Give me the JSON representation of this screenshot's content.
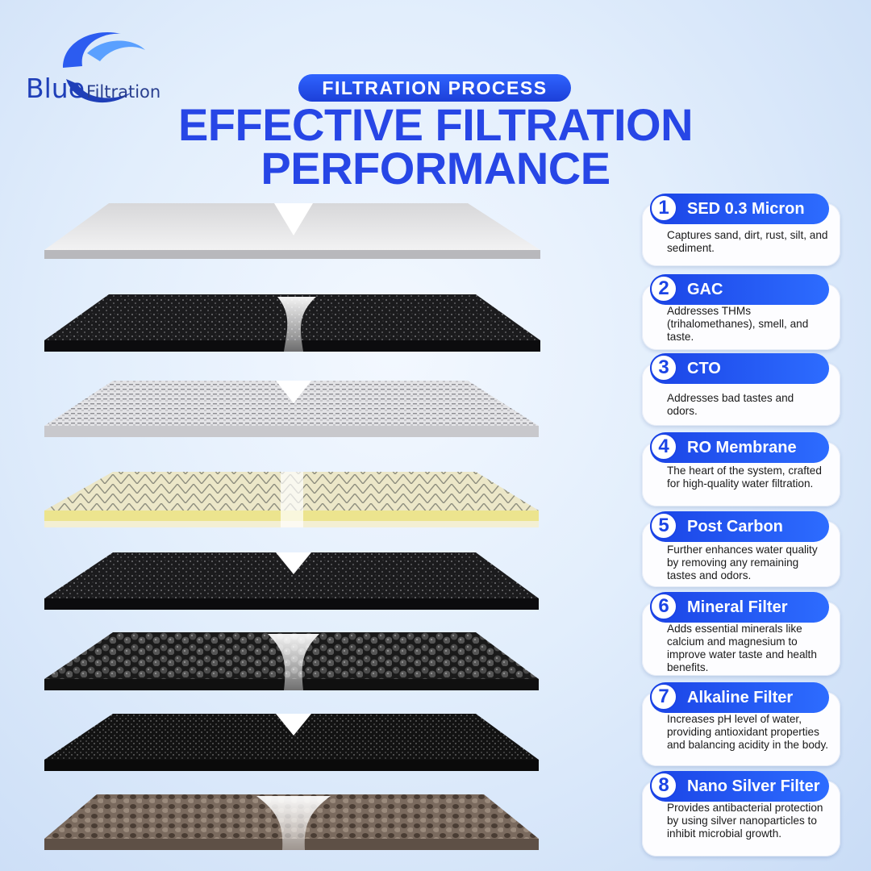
{
  "brand": {
    "logo_blue": "Blue",
    "logo_filtration": "Filtration"
  },
  "header": {
    "eyebrow": "FILTRATION PROCESS",
    "headline_line1": "EFFECTIVE FILTRATION",
    "headline_line2": "PERFORMANCE"
  },
  "colors": {
    "accent": "#2746e6",
    "tag": "#1b44e6",
    "background": "#dceafb"
  },
  "stages": [
    {
      "number": "1",
      "name": "SED 0.3 Micron",
      "description": "Captures sand, dirt, rust, silt, and sediment."
    },
    {
      "number": "2",
      "name": "GAC",
      "description": "Addresses THMs (trihalomethanes), smell, and taste."
    },
    {
      "number": "3",
      "name": "CTO",
      "description": "Addresses bad tastes and odors."
    },
    {
      "number": "4",
      "name": "RO Membrane",
      "description": "The heart of the system, crafted for high-quality water filtration."
    },
    {
      "number": "5",
      "name": "Post Carbon",
      "description": "Further enhances water quality by removing any remaining tastes and odors."
    },
    {
      "number": "6",
      "name": "Mineral Filter",
      "description": "Adds essential minerals like calcium and magnesium to improve water taste and health benefits."
    },
    {
      "number": "7",
      "name": "Alkaline Filter",
      "description": "Increases pH level of water, providing antioxidant properties and balancing acidity in the body."
    },
    {
      "number": "8",
      "name": "Nano Silver Filter",
      "description": "Provides antibacterial protection by using silver nanoparticles to inhibit microbial growth."
    }
  ]
}
